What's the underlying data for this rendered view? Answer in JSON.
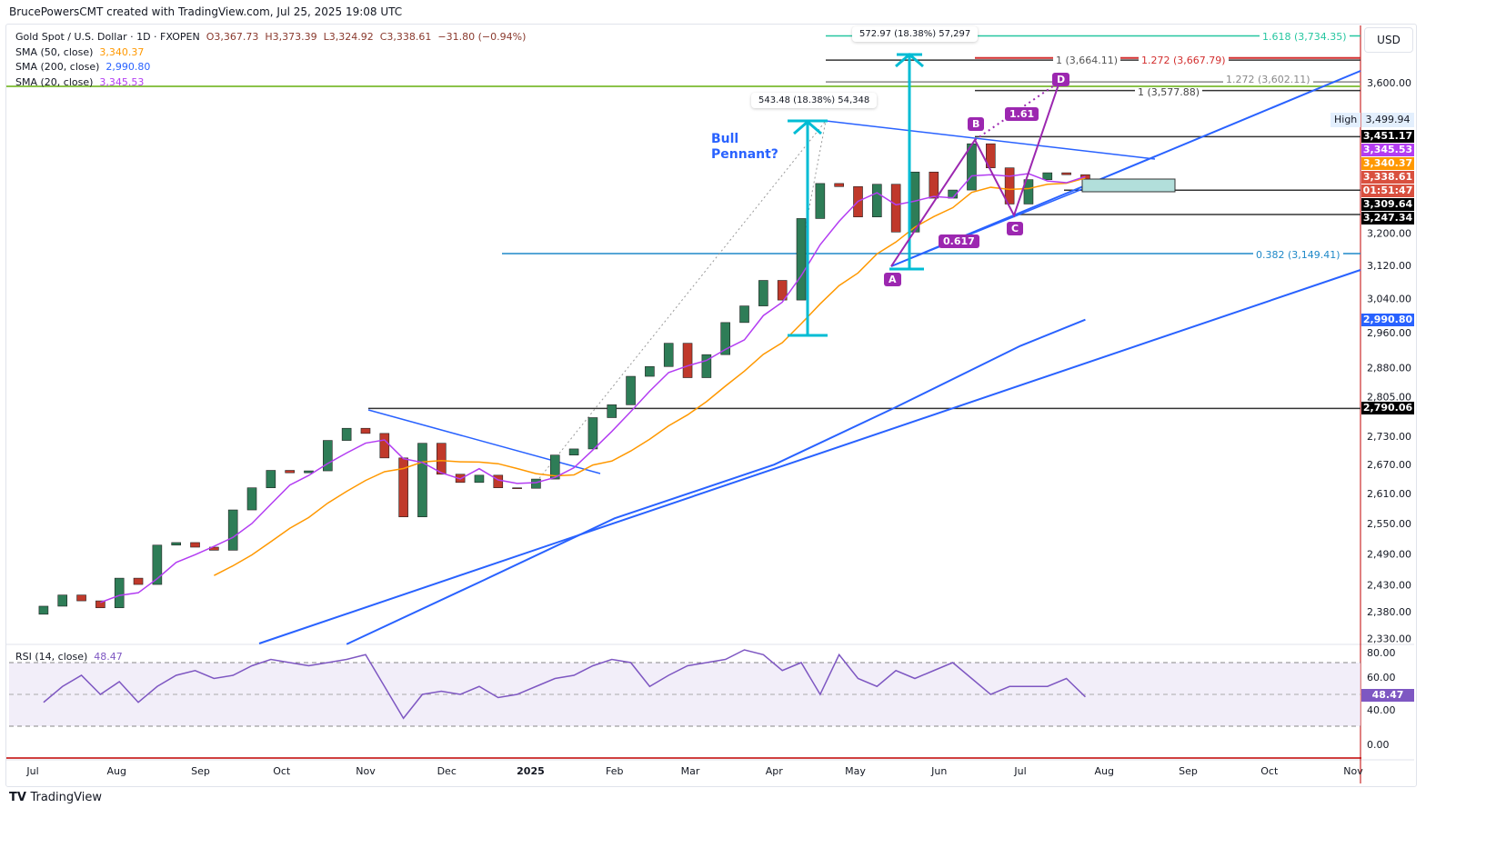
{
  "credit": "BrucePowersCMT created with TradingView.com, Jul 25, 2025 19:08 UTC",
  "legend": {
    "symbol": "Gold Spot / U.S. Dollar · 1D · FXOPEN",
    "open": "O3,367.73",
    "high": "H3,373.39",
    "low": "L3,324.92",
    "close": "C3,338.61",
    "change": "−31.80 (−0.94%)",
    "sma50_label": "SMA (50, close)",
    "sma50_value": "3,340.37",
    "sma200_label": "SMA (200, close)",
    "sma200_value": "2,990.80",
    "sma20_label": "SMA (20, close)",
    "sma20_value": "3,345.53"
  },
  "colors": {
    "up": "#2e7d57",
    "down": "#c0392b",
    "sma20": "#b33df2",
    "sma50": "#ff9800",
    "sma200": "#2962ff",
    "trend": "#2962ff",
    "measure": "#00bcd4",
    "pattern": "#9c27b0",
    "fib_green": "#26c6a0",
    "fib_red": "#d32f2f",
    "level": "#333333",
    "rsi": "#7e57c2",
    "last": "#d9503f"
  },
  "price_axis": {
    "currency": "USD",
    "ticks": [
      "3,600.00",
      "3,200.00",
      "3,120.00",
      "3,040.00",
      "2,960.00",
      "2,880.00",
      "2,805.00",
      "2,730.00",
      "2,670.00",
      "2,610.00",
      "2,550.00",
      "2,490.00",
      "2,430.00",
      "2,380.00",
      "2,330.00"
    ],
    "tick_values": [
      3600,
      3200,
      3120,
      3040,
      2960,
      2880,
      2805,
      2730,
      2670,
      2610,
      2550,
      2490,
      2430,
      2380,
      2330
    ],
    "high_label": "High",
    "high_value": "3,499.94",
    "tags": [
      {
        "text": "3,451.17",
        "price": 3451.17,
        "color": "#000000"
      },
      {
        "text": "3,345.53",
        "price": 3345.53,
        "color": "#b33df2"
      },
      {
        "text": "3,340.37",
        "price": 3340.37,
        "color": "#ff9800"
      },
      {
        "text": "3,338.61",
        "price": 3338.61,
        "color": "#d9503f"
      },
      {
        "text": "01:51:47",
        "price": 3320,
        "color": "#d9503f"
      },
      {
        "text": "3,309.64",
        "price": 3309.64,
        "color": "#000000"
      },
      {
        "text": "3,247.34",
        "price": 3247.34,
        "color": "#000000"
      },
      {
        "text": "2,990.80",
        "price": 2990.8,
        "color": "#2962ff"
      },
      {
        "text": "2,790.06",
        "price": 2790.06,
        "color": "#000000"
      }
    ]
  },
  "time_axis": [
    "Jul",
    "Aug",
    "Sep",
    "Oct",
    "Nov",
    "Dec",
    "2025",
    "Feb",
    "Mar",
    "Apr",
    "May",
    "Jun",
    "Jul",
    "Aug",
    "Sep",
    "Oct",
    "Nov"
  ],
  "annotations": {
    "bull_pennant": "Bull\nPennant?",
    "measure1": "543.48 (18.38%) 54,348",
    "measure2": "572.97 (18.38%) 57,297",
    "fib_1618": "1.618 (3,734.35)",
    "fib_1_a": "1 (3,664.11)",
    "fib_1272_red": "1.272 (3,667.79)",
    "fib_1272": "1.272 (3,602.11)",
    "fib_1_b": "1 (3,577.88)",
    "fib_0382": "0.382 (3,149.41)",
    "points": {
      "A": "A",
      "B": "B",
      "C": "C",
      "D": "D"
    },
    "ratio_bc": "0.617",
    "ratio_cd": "1.61"
  },
  "rsi": {
    "label": "RSI (14, close)",
    "value": "48.47",
    "ticks": [
      "80.00",
      "60.00",
      "40.00"
    ],
    "zero": "0.00"
  },
  "footer": "TradingView",
  "chart_data": {
    "type": "candlestick",
    "title": "Gold Spot / U.S. Dollar · 1D · FXOPEN",
    "y_scale": "log",
    "ylim": [
      2300,
      3780
    ],
    "grid": false,
    "closes": [
      [
        "2024-07-05",
        2390
      ],
      [
        "2024-07-12",
        2411
      ],
      [
        "2024-07-19",
        2400
      ],
      [
        "2024-07-26",
        2387
      ],
      [
        "2024-08-02",
        2443
      ],
      [
        "2024-08-09",
        2431
      ],
      [
        "2024-08-16",
        2507
      ],
      [
        "2024-08-23",
        2512
      ],
      [
        "2024-08-30",
        2503
      ],
      [
        "2024-09-06",
        2497
      ],
      [
        "2024-09-13",
        2577
      ],
      [
        "2024-09-20",
        2622
      ],
      [
        "2024-09-27",
        2658
      ],
      [
        "2024-10-04",
        2653
      ],
      [
        "2024-10-11",
        2657
      ],
      [
        "2024-10-18",
        2721
      ],
      [
        "2024-10-25",
        2747
      ],
      [
        "2024-11-01",
        2736
      ],
      [
        "2024-11-08",
        2684
      ],
      [
        "2024-11-15",
        2563
      ],
      [
        "2024-11-22",
        2715
      ],
      [
        "2024-11-29",
        2650
      ],
      [
        "2024-12-06",
        2633
      ],
      [
        "2024-12-13",
        2648
      ],
      [
        "2024-12-20",
        2622
      ],
      [
        "2024-12-27",
        2621
      ],
      [
        "2025-01-03",
        2640
      ],
      [
        "2025-01-10",
        2690
      ],
      [
        "2025-01-17",
        2703
      ],
      [
        "2025-01-24",
        2770
      ],
      [
        "2025-01-31",
        2798
      ],
      [
        "2025-02-07",
        2861
      ],
      [
        "2025-02-14",
        2883
      ],
      [
        "2025-02-21",
        2936
      ],
      [
        "2025-02-28",
        2858
      ],
      [
        "2025-03-07",
        2910
      ],
      [
        "2025-03-14",
        2984
      ],
      [
        "2025-03-21",
        3023
      ],
      [
        "2025-03-28",
        3084
      ],
      [
        "2025-04-04",
        3037
      ],
      [
        "2025-04-11",
        3237
      ],
      [
        "2025-04-18",
        3327
      ],
      [
        "2025-04-25",
        3319
      ],
      [
        "2025-05-02",
        3241
      ],
      [
        "2025-05-09",
        3325
      ],
      [
        "2025-05-16",
        3203
      ],
      [
        "2025-05-23",
        3357
      ],
      [
        "2025-05-30",
        3289
      ],
      [
        "2025-06-06",
        3310
      ],
      [
        "2025-06-13",
        3432
      ],
      [
        "2025-06-20",
        3368
      ],
      [
        "2025-06-27",
        3274
      ],
      [
        "2025-07-04",
        3337
      ],
      [
        "2025-07-11",
        3355
      ],
      [
        "2025-07-18",
        3350
      ],
      [
        "2025-07-25",
        3338.61
      ]
    ],
    "sma200": [
      [
        "2024-10-25",
        2320
      ],
      [
        "2024-12-15",
        2440
      ],
      [
        "2025-02-01",
        2560
      ],
      [
        "2025-04-01",
        2670
      ],
      [
        "2025-05-15",
        2790
      ],
      [
        "2025-07-01",
        2930
      ],
      [
        "2025-07-25",
        2990.8
      ]
    ],
    "rsi": [
      45,
      55,
      62,
      50,
      58,
      45,
      55,
      62,
      65,
      60,
      62,
      68,
      72,
      70,
      68,
      70,
      72,
      75,
      55,
      35,
      50,
      52,
      50,
      55,
      48,
      50,
      55,
      60,
      62,
      68,
      72,
      70,
      55,
      62,
      68,
      70,
      72,
      78,
      75,
      65,
      70,
      50,
      75,
      60,
      55,
      65,
      60,
      65,
      70,
      60,
      50,
      55,
      55,
      55,
      60,
      48.47
    ],
    "levels": [
      3734.35,
      3664.11,
      3602.11,
      3577.88,
      3451.17,
      3309.64,
      3247.34,
      3149.41,
      2790.06
    ]
  }
}
